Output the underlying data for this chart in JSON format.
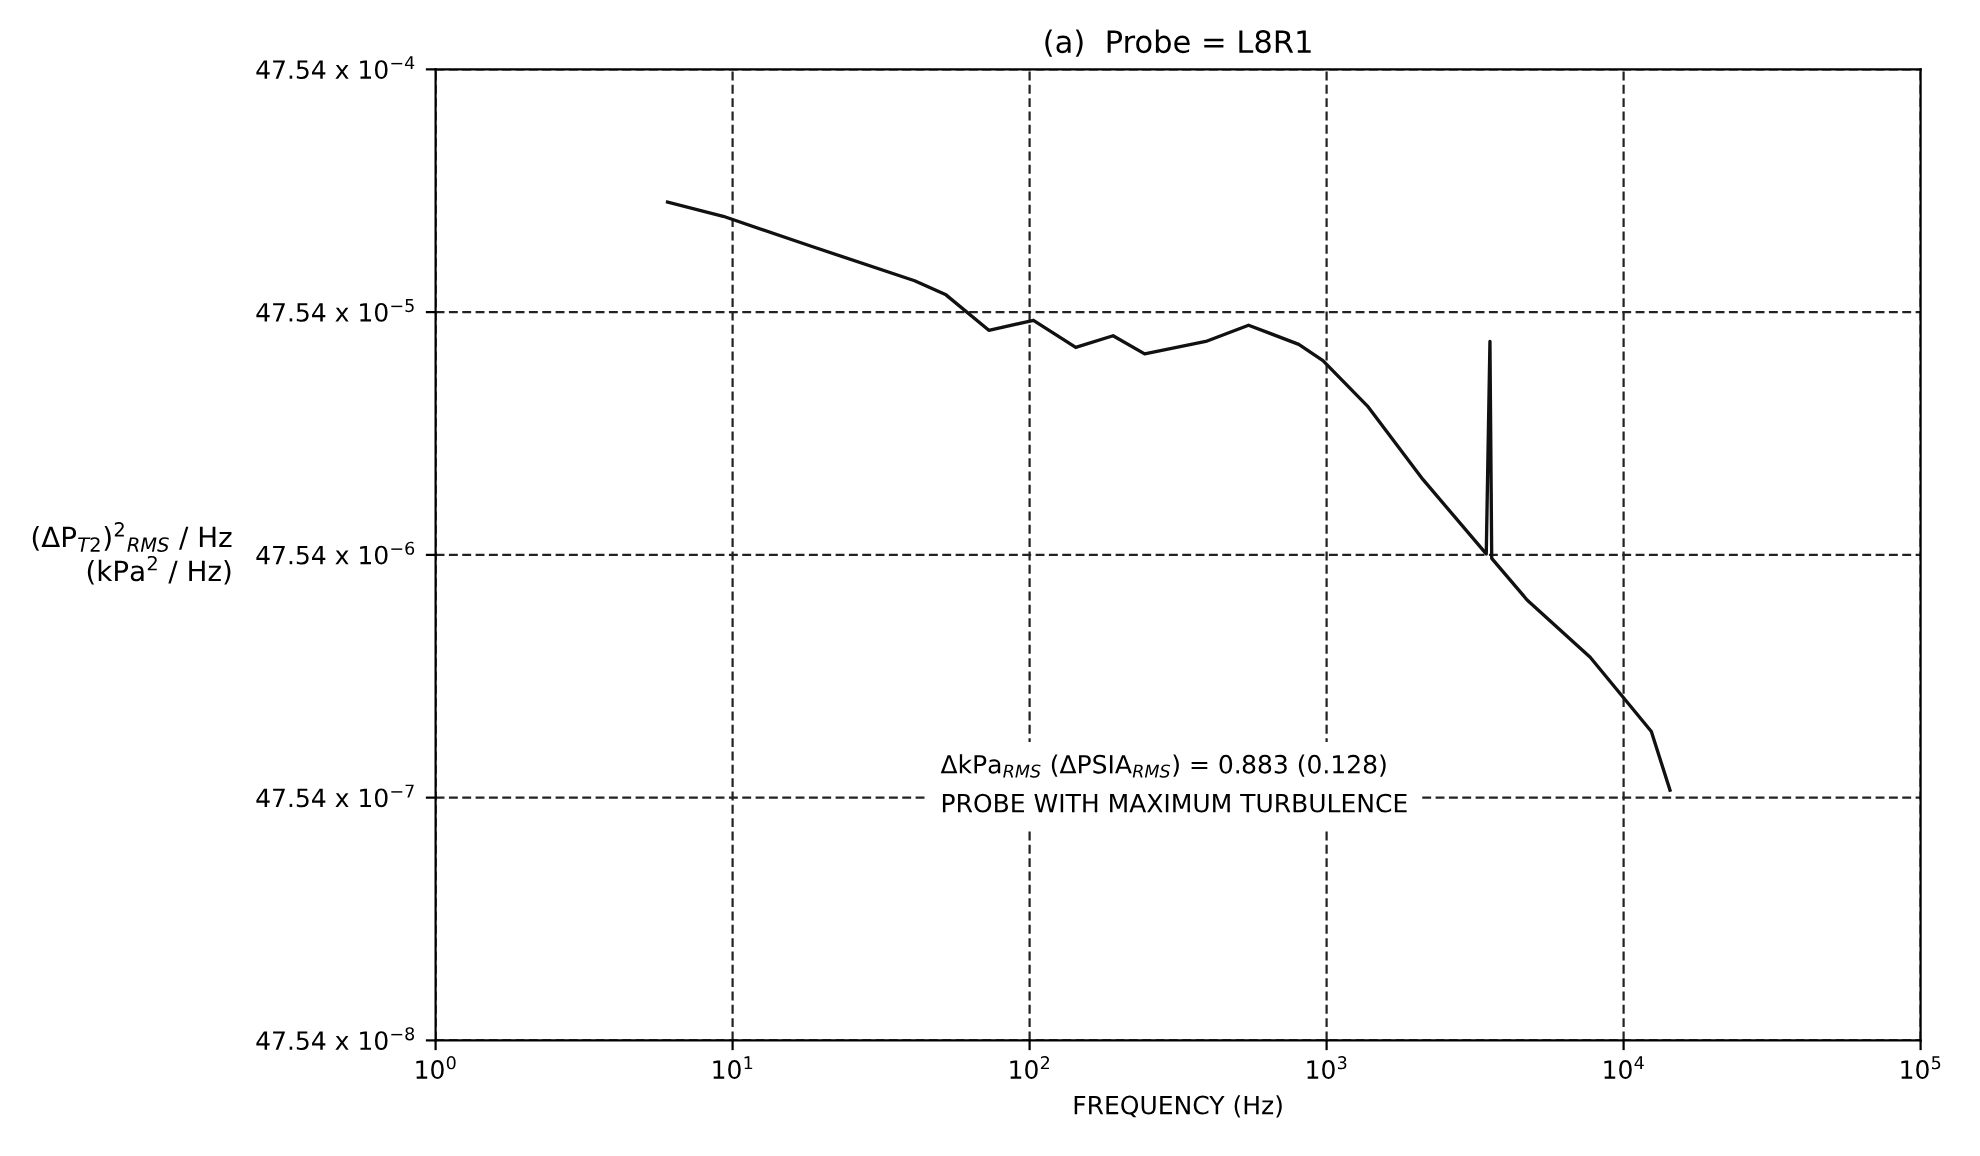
{
  "chart_data": {
    "type": "line",
    "title": "(a)  Probe = L8R1",
    "xlabel": "FREQUENCY (Hz)",
    "ylabel": "(ΔP$_{T2}$)$^{2}$$_{RMS}$ / Hz\n(kPa$^{2}$ / Hz)",
    "annotations": [
      "ΔkPa$_{RMS}$ (ΔPSIA$_{RMS}$) = 0.883 (0.128)",
      "PROBE WITH MAXIMUM TURBULENCE"
    ],
    "x": [
      6.04,
      9.3,
      18.3,
      41.0,
      52.3,
      72.9,
      103,
      143,
      191,
      244,
      392,
      546,
      806,
      972,
      1373,
      2113,
      3448,
      3548,
      3597,
      4732,
      7718,
      12400,
      14330
    ],
    "series": [
      {
        "color": "#111111",
        "values": [
          0.00135,
          0.00118,
          0.00089,
          0.00064,
          0.00056,
          0.0004,
          0.00044,
          0.00034,
          0.00038,
          0.00032,
          0.00036,
          0.00042,
          0.00035,
          0.0003,
          0.000195,
          9.7e-05,
          4.8e-05,
          0.00036,
          4.6e-05,
          3.1e-05,
          1.8e-05,
          8.9e-06,
          5.1e-06
        ]
      }
    ],
    "log": "xy",
    "xlim": [
      1,
      100000
    ],
    "ylim": [
      4.754e-07,
      0.004754
    ],
    "xticks": [
      {
        "value": 1,
        "label": "10$^{0}$"
      },
      {
        "value": 10,
        "label": "10$^{1}$"
      },
      {
        "value": 100,
        "label": "10$^{2}$"
      },
      {
        "value": 1000,
        "label": "10$^{3}$"
      },
      {
        "value": 10000,
        "label": "10$^{4}$"
      },
      {
        "value": 100000,
        "label": "10$^{5}$"
      }
    ],
    "yticks": [
      {
        "value": 4.754e-07,
        "label": "47.54 x 10$^{−8}$"
      },
      {
        "value": 4.754e-06,
        "label": "47.54 x 10$^{−7}$"
      },
      {
        "value": 4.754e-05,
        "label": "47.54 x 10$^{−6}$"
      },
      {
        "value": 0.0004754,
        "label": "47.54 x 10$^{−5}$"
      },
      {
        "value": 0.004754,
        "label": "47.54 x 10$^{−4}$"
      }
    ],
    "grid": true,
    "marker": "none",
    "line_style": "solid",
    "legend": false
  }
}
